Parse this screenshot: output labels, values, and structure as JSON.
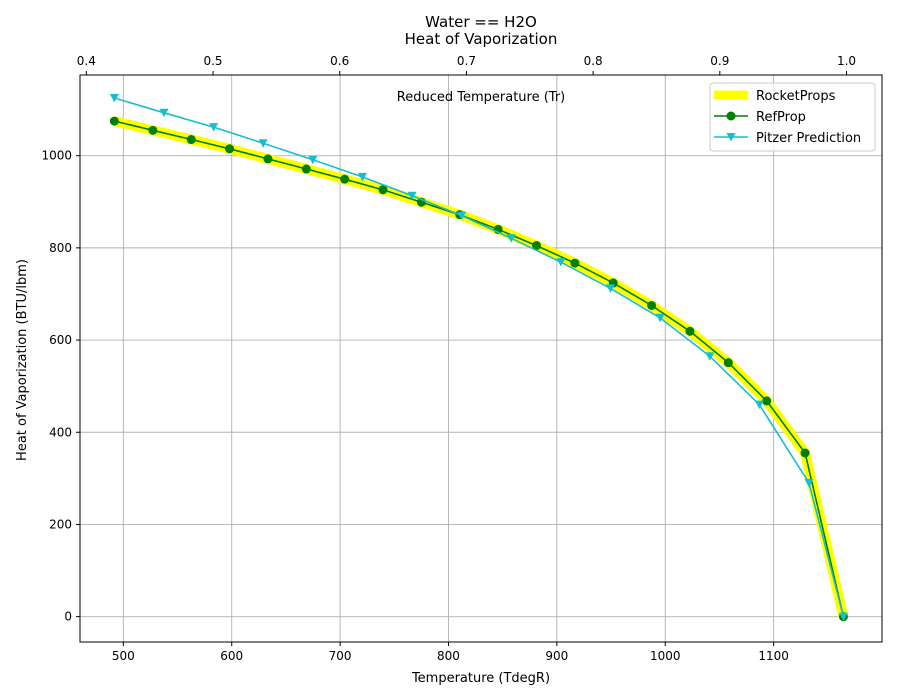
{
  "chart_data": {
    "type": "line",
    "title": "Water == H2O",
    "subtitle": "Heat of Vaporization",
    "xlabel": "Temperature (TdegR)",
    "ylabel": "Heat of Vaporization (BTU/lbm)",
    "x2label": "Reduced Temperature (Tr)",
    "xlim": [
      460,
      1200
    ],
    "ylim": [
      -55,
      1175
    ],
    "x2lim": [
      0.395,
      1.028
    ],
    "xticks": [
      500,
      600,
      700,
      800,
      900,
      1000,
      1100
    ],
    "yticks": [
      0,
      200,
      400,
      600,
      800,
      1000
    ],
    "x2ticks": [
      0.4,
      0.5,
      0.6,
      0.7,
      0.8,
      0.9,
      1.0
    ],
    "grid": true,
    "legend_position": "top-right",
    "series": [
      {
        "name": "RocketProps",
        "color": "#ffff00",
        "style": "thick-line",
        "x": [
          491.7,
          527.2,
          562.6,
          598.0,
          633.4,
          668.8,
          704.2,
          739.6,
          775.0,
          810.4,
          845.8,
          881.2,
          916.6,
          952.0,
          987.4,
          1022.8,
          1058.2,
          1093.6,
          1129.0,
          1164.4
        ],
        "y": [
          1075,
          1055,
          1035,
          1015,
          993,
          971,
          949,
          926,
          899,
          872,
          840,
          805,
          767,
          724,
          675,
          619,
          551,
          468,
          355,
          0
        ]
      },
      {
        "name": "RefProp",
        "color": "#008000",
        "style": "line-circle",
        "x": [
          491.7,
          527.2,
          562.6,
          598.0,
          633.4,
          668.8,
          704.2,
          739.6,
          775.0,
          810.4,
          845.8,
          881.2,
          916.6,
          952.0,
          987.4,
          1022.8,
          1058.2,
          1093.6,
          1129.0,
          1164.4
        ],
        "y": [
          1075,
          1055,
          1035,
          1015,
          993,
          971,
          949,
          926,
          899,
          872,
          840,
          805,
          767,
          724,
          675,
          619,
          551,
          468,
          355,
          0
        ]
      },
      {
        "name": "Pitzer Prediction",
        "color": "#17becf",
        "style": "line-triangle",
        "x": [
          491.7,
          537.5,
          583.3,
          629.0,
          674.8,
          720.6,
          766.4,
          812.2,
          857.9,
          903.7,
          949.5,
          995.3,
          1041.1,
          1086.8,
          1132.6,
          1164.4
        ],
        "y": [
          1125,
          1093,
          1062,
          1027,
          991,
          954,
          913,
          870,
          821,
          769,
          712,
          648,
          565,
          460,
          290,
          0
        ]
      }
    ]
  }
}
